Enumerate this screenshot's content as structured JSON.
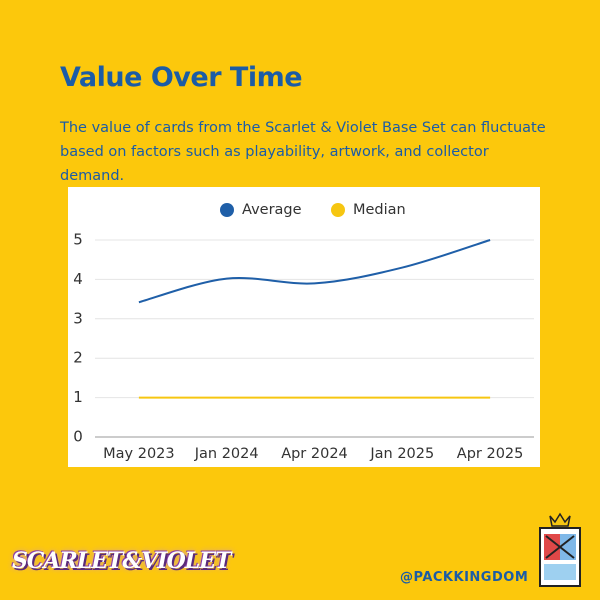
{
  "header": {
    "title": "Value Over Time",
    "subtitle": "The value of cards from the Scarlet & Violet Base Set can fluctuate based on factors such as playability, artwork, and collector demand."
  },
  "chart_data": {
    "type": "line",
    "categories": [
      "May 2023",
      "Jan 2024",
      "Apr 2024",
      "Jan 2025",
      "Apr 2025"
    ],
    "series": [
      {
        "name": "Average",
        "color": "#1f5fa8",
        "values": [
          3.42,
          4.02,
          3.9,
          4.3,
          5.0
        ]
      },
      {
        "name": "Median",
        "color": "#f6c611",
        "values": [
          1,
          1,
          1,
          1,
          1
        ]
      }
    ],
    "ylim": [
      0,
      5
    ],
    "yticks": [
      0,
      1,
      2,
      3,
      4,
      5
    ],
    "grid": true,
    "legend": "top",
    "smooth": true
  },
  "footer": {
    "logo": "SCARLET&VIOLET",
    "handle": "@PACKKINGDOM"
  }
}
